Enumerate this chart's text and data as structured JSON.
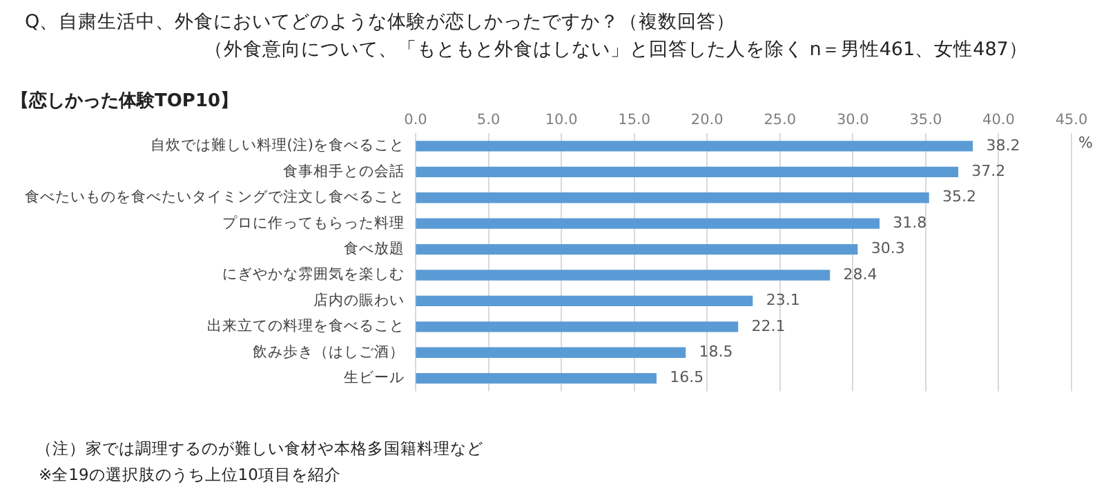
{
  "chart_data": {
    "type": "bar",
    "orientation": "horizontal",
    "title": "Q、自粛生活中、外食においてどのような体験が恋しかったですか？（複数回答）",
    "subtitle": "（外食意向について、「もともと外食はしない」と回答した人を除く n＝男性461、女性487）",
    "xlabel": "%",
    "categories": [
      "自炊では難しい料理(注)を食べること",
      "食事相手との会話",
      "食べたいものを食べたいタイミングで注文し食べること",
      "プロに作ってもらった料理",
      "食べ放題",
      "にぎやかな雰囲気を楽しむ",
      "店内の賑わい",
      "出来立ての料理を食べること",
      "飲み歩き（はしご酒）",
      "生ビール"
    ],
    "values": [
      38.2,
      37.2,
      35.2,
      31.8,
      30.3,
      28.4,
      23.1,
      22.1,
      18.5,
      16.5
    ],
    "color": "#5b9bd5",
    "data_labels": true,
    "grid": "x",
    "legend": false,
    "xlim": [
      0,
      45
    ],
    "xticks": [
      {
        "value": 0,
        "label": "0.0"
      },
      {
        "value": 5,
        "label": "5.0"
      },
      {
        "value": 10,
        "label": "10.0"
      },
      {
        "value": 15,
        "label": "15.0"
      },
      {
        "value": 20,
        "label": "20.0"
      },
      {
        "value": 25,
        "label": "25.0"
      },
      {
        "value": 30,
        "label": "30.0"
      },
      {
        "value": 35,
        "label": "35.0"
      },
      {
        "value": 40,
        "label": "40.0"
      },
      {
        "value": 45,
        "label": "45.0"
      }
    ],
    "annotations": [
      "【恋しかった体験TOP10】",
      "（注）家では調理するのが難しい食材や本格多国籍料理など",
      "※全19の選択肢のうち上位10項目を紹介"
    ]
  }
}
